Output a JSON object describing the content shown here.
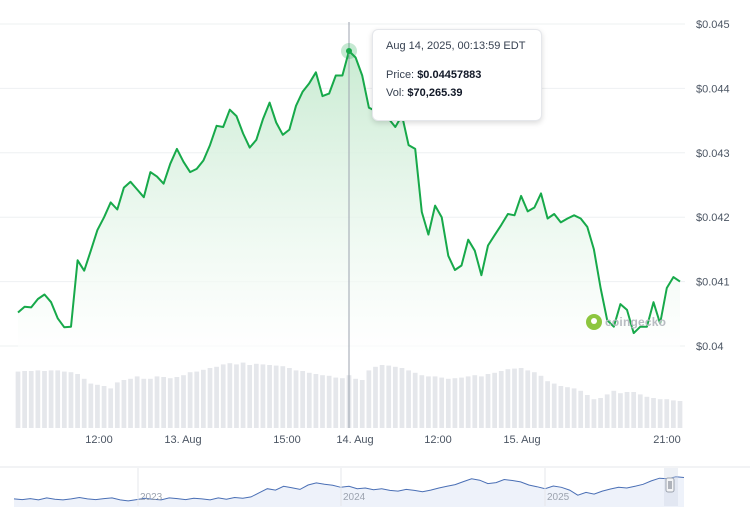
{
  "chart_data": {
    "type": "area",
    "y_axis": {
      "position": "right",
      "ticks": [
        "$0.045",
        "$0.044",
        "$0.043",
        "$0.042",
        "$0.041",
        "$0.04"
      ],
      "ylim": [
        0.04,
        0.045
      ]
    },
    "x_axis": {
      "ticks": [
        "12:00",
        "13. Aug",
        "15:00",
        "14. Aug",
        "12:00",
        "15. Aug",
        "21:00"
      ]
    },
    "grid": true,
    "series": [
      {
        "values": [
          0.04052,
          0.04061,
          0.0406,
          0.04073,
          0.0408,
          0.04068,
          0.04043,
          0.04029,
          0.0403,
          0.04133,
          0.04117,
          0.04148,
          0.0418,
          0.042,
          0.04223,
          0.04212,
          0.04246,
          0.04255,
          0.04243,
          0.04231,
          0.0427,
          0.04263,
          0.04252,
          0.04283,
          0.04306,
          0.04286,
          0.0427,
          0.04275,
          0.04288,
          0.04312,
          0.04342,
          0.0434,
          0.04367,
          0.04357,
          0.0433,
          0.04308,
          0.0432,
          0.04352,
          0.04378,
          0.04347,
          0.04328,
          0.04336,
          0.04373,
          0.04395,
          0.04408,
          0.04425,
          0.04388,
          0.04392,
          0.0442,
          0.0442,
          0.04458,
          0.04448,
          0.0442,
          0.0437,
          0.04365,
          0.0438,
          0.04353,
          0.0434,
          0.04358,
          0.04312,
          0.04306,
          0.04208,
          0.04173,
          0.04218,
          0.042,
          0.0414,
          0.04118,
          0.04125,
          0.04165,
          0.04148,
          0.0411,
          0.04156,
          0.04172,
          0.04188,
          0.04205,
          0.04203,
          0.04233,
          0.04209,
          0.04215,
          0.04237,
          0.04198,
          0.04205,
          0.04192,
          0.04198,
          0.04203,
          0.04198,
          0.04185,
          0.0415,
          0.0409,
          0.0404,
          0.0403,
          0.04065,
          0.04056,
          0.0402,
          0.0403,
          0.0403,
          0.04068,
          0.04035,
          0.0409,
          0.04107,
          0.041
        ]
      }
    ],
    "volume": [
      0.94,
      0.95,
      0.95,
      0.96,
      0.95,
      0.96,
      0.96,
      0.94,
      0.93,
      0.9,
      0.82,
      0.74,
      0.72,
      0.7,
      0.66,
      0.76,
      0.8,
      0.82,
      0.86,
      0.82,
      0.82,
      0.86,
      0.85,
      0.83,
      0.85,
      0.88,
      0.93,
      0.94,
      0.97,
      1.0,
      1.02,
      1.06,
      1.08,
      1.06,
      1.09,
      1.05,
      1.07,
      1.06,
      1.05,
      1.04,
      1.03,
      1.0,
      0.96,
      0.95,
      0.92,
      0.9,
      0.88,
      0.87,
      0.84,
      0.83,
      0.88,
      0.82,
      0.8,
      0.96,
      1.02,
      1.05,
      1.04,
      1.02,
      1.0,
      0.96,
      0.92,
      0.88,
      0.86,
      0.86,
      0.84,
      0.82,
      0.83,
      0.84,
      0.86,
      0.88,
      0.86,
      0.9,
      0.92,
      0.95,
      0.98,
      0.99,
      1.0,
      0.96,
      0.93,
      0.87,
      0.78,
      0.74,
      0.7,
      0.68,
      0.66,
      0.62,
      0.55,
      0.48,
      0.5,
      0.56,
      0.62,
      0.58,
      0.6,
      0.6,
      0.56,
      0.52,
      0.5,
      0.48,
      0.48,
      0.46,
      0.45
    ],
    "hover": {
      "index": 50,
      "date": "Aug 14, 2025, 00:13:59 EDT",
      "price_label": "Price:",
      "price": "$0.04457883",
      "vol_label": "Vol:",
      "vol": "$70,265.39"
    },
    "navigator": {
      "ticks": [
        "2023",
        "2024",
        "2025"
      ],
      "values": [
        0.15,
        0.13,
        0.16,
        0.12,
        0.18,
        0.14,
        0.12,
        0.15,
        0.19,
        0.15,
        0.13,
        0.16,
        0.18,
        0.12,
        0.09,
        0.13,
        0.17,
        0.14,
        0.12,
        0.18,
        0.16,
        0.13,
        0.17,
        0.15,
        0.12,
        0.18,
        0.14,
        0.19,
        0.17,
        0.21,
        0.33,
        0.45,
        0.41,
        0.52,
        0.48,
        0.43,
        0.56,
        0.62,
        0.58,
        0.55,
        0.49,
        0.52,
        0.45,
        0.47,
        0.42,
        0.45,
        0.4,
        0.38,
        0.43,
        0.4,
        0.36,
        0.41,
        0.47,
        0.52,
        0.57,
        0.66,
        0.74,
        0.7,
        0.6,
        0.63,
        0.72,
        0.69,
        0.65,
        0.56,
        0.51,
        0.45,
        0.53,
        0.49,
        0.41,
        0.26,
        0.34,
        0.29,
        0.38,
        0.44,
        0.49,
        0.47,
        0.52,
        0.58,
        0.68,
        0.76,
        0.74,
        0.8,
        0.78
      ]
    },
    "colors": {
      "line": "#17a94a",
      "fill_top": "#c9ebd2",
      "fill_bottom": "#ffffff",
      "volume": "#e5e7eb",
      "grid": "#eef0f2",
      "navigator_line": "#4a6fb5",
      "crosshair": "#9ca3af"
    }
  },
  "watermark": {
    "brand": "coingecko"
  }
}
